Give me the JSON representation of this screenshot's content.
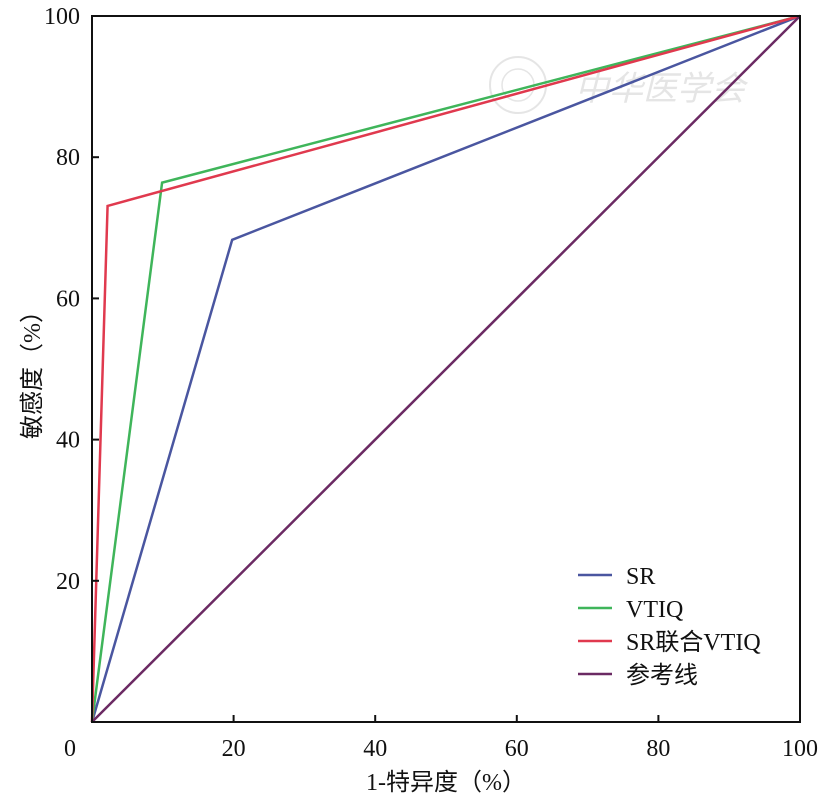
{
  "chart_data": {
    "type": "line",
    "title": "",
    "xlabel": "1-特异度（%）",
    "ylabel": "敏感度（%）",
    "xlim": [
      0,
      100
    ],
    "ylim": [
      0,
      100
    ],
    "x_ticks": [
      "0",
      "20",
      "40",
      "60",
      "80",
      "100"
    ],
    "y_ticks": [
      "20",
      "40",
      "60",
      "80",
      "100"
    ],
    "grid": false,
    "legend_position": "bottom-right",
    "series": [
      {
        "name": "SR",
        "color": "#4a56a0",
        "x": [
          0,
          19.8,
          100
        ],
        "y": [
          0,
          68.3,
          100
        ]
      },
      {
        "name": "VTIQ",
        "color": "#3fb55a",
        "x": [
          0,
          9.9,
          100
        ],
        "y": [
          0,
          76.4,
          100
        ]
      },
      {
        "name": "SR联合VTIQ",
        "color": "#e0394e",
        "x": [
          0,
          2.2,
          100
        ],
        "y": [
          0,
          73.1,
          100
        ]
      },
      {
        "name": "参考线",
        "color": "#6b2a63",
        "x": [
          0,
          100
        ],
        "y": [
          0,
          100
        ]
      }
    ],
    "watermark": "中华医学会"
  }
}
